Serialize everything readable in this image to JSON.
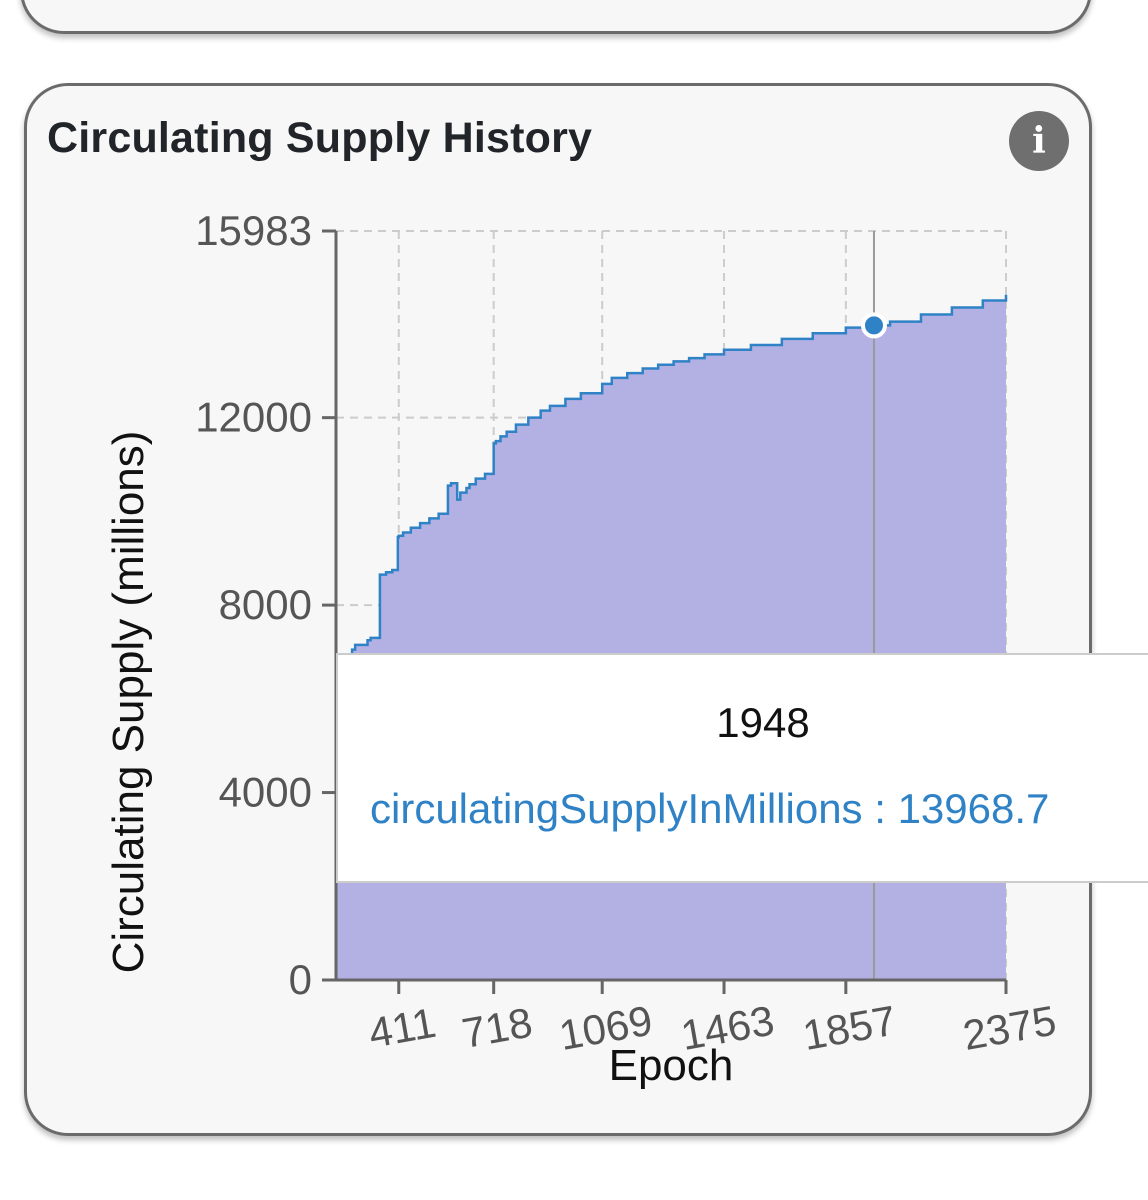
{
  "card": {
    "title": "Circulating Supply History",
    "info_icon": "info-icon",
    "info_glyph": "i"
  },
  "chart_data": {
    "type": "area",
    "title": "Circulating Supply History",
    "xlabel": "Epoch",
    "ylabel": "Circulating Supply (millions)",
    "x_ticks": [
      "411",
      "718",
      "1069",
      "1463",
      "1857",
      "2375"
    ],
    "y_ticks": [
      "0",
      "4000",
      "8000",
      "12000",
      "15983"
    ],
    "ylim": [
      0,
      15983
    ],
    "xlim": [
      208,
      2375
    ],
    "grid": true,
    "fill_color": "#b3b0e4",
    "line_color": "#2f82c5",
    "series": [
      {
        "name": "circulatingSupplyInMillions",
        "x": [
          208,
          260,
          270,
          310,
          320,
          350,
          370,
          390,
          408,
          411,
          425,
          450,
          480,
          510,
          540,
          570,
          580,
          600,
          610,
          630,
          640,
          660,
          690,
          718,
          725,
          740,
          760,
          790,
          830,
          870,
          900,
          950,
          1000,
          1069,
          1100,
          1150,
          1200,
          1250,
          1300,
          1350,
          1400,
          1463,
          1550,
          1650,
          1750,
          1857,
          1948,
          2000,
          2100,
          2200,
          2300,
          2375
        ],
        "y": [
          6950,
          7050,
          7150,
          7250,
          7300,
          8650,
          8700,
          8750,
          9450,
          9480,
          9550,
          9650,
          9750,
          9850,
          9950,
          10550,
          10600,
          10250,
          10400,
          10500,
          10580,
          10700,
          10800,
          11450,
          11500,
          11600,
          11700,
          11850,
          12000,
          12150,
          12250,
          12400,
          12520,
          12720,
          12850,
          12950,
          13050,
          13130,
          13200,
          13270,
          13350,
          13450,
          13550,
          13680,
          13800,
          13920,
          13968.7,
          14050,
          14200,
          14350,
          14500,
          14620
        ]
      }
    ],
    "highlight": {
      "x": "1948",
      "series": "circulatingSupplyInMillions",
      "value": "13968.7"
    }
  },
  "tooltip": {
    "label": "1948",
    "series_name": "circulatingSupplyInMillions",
    "separator": " : ",
    "value": "13968.7"
  }
}
